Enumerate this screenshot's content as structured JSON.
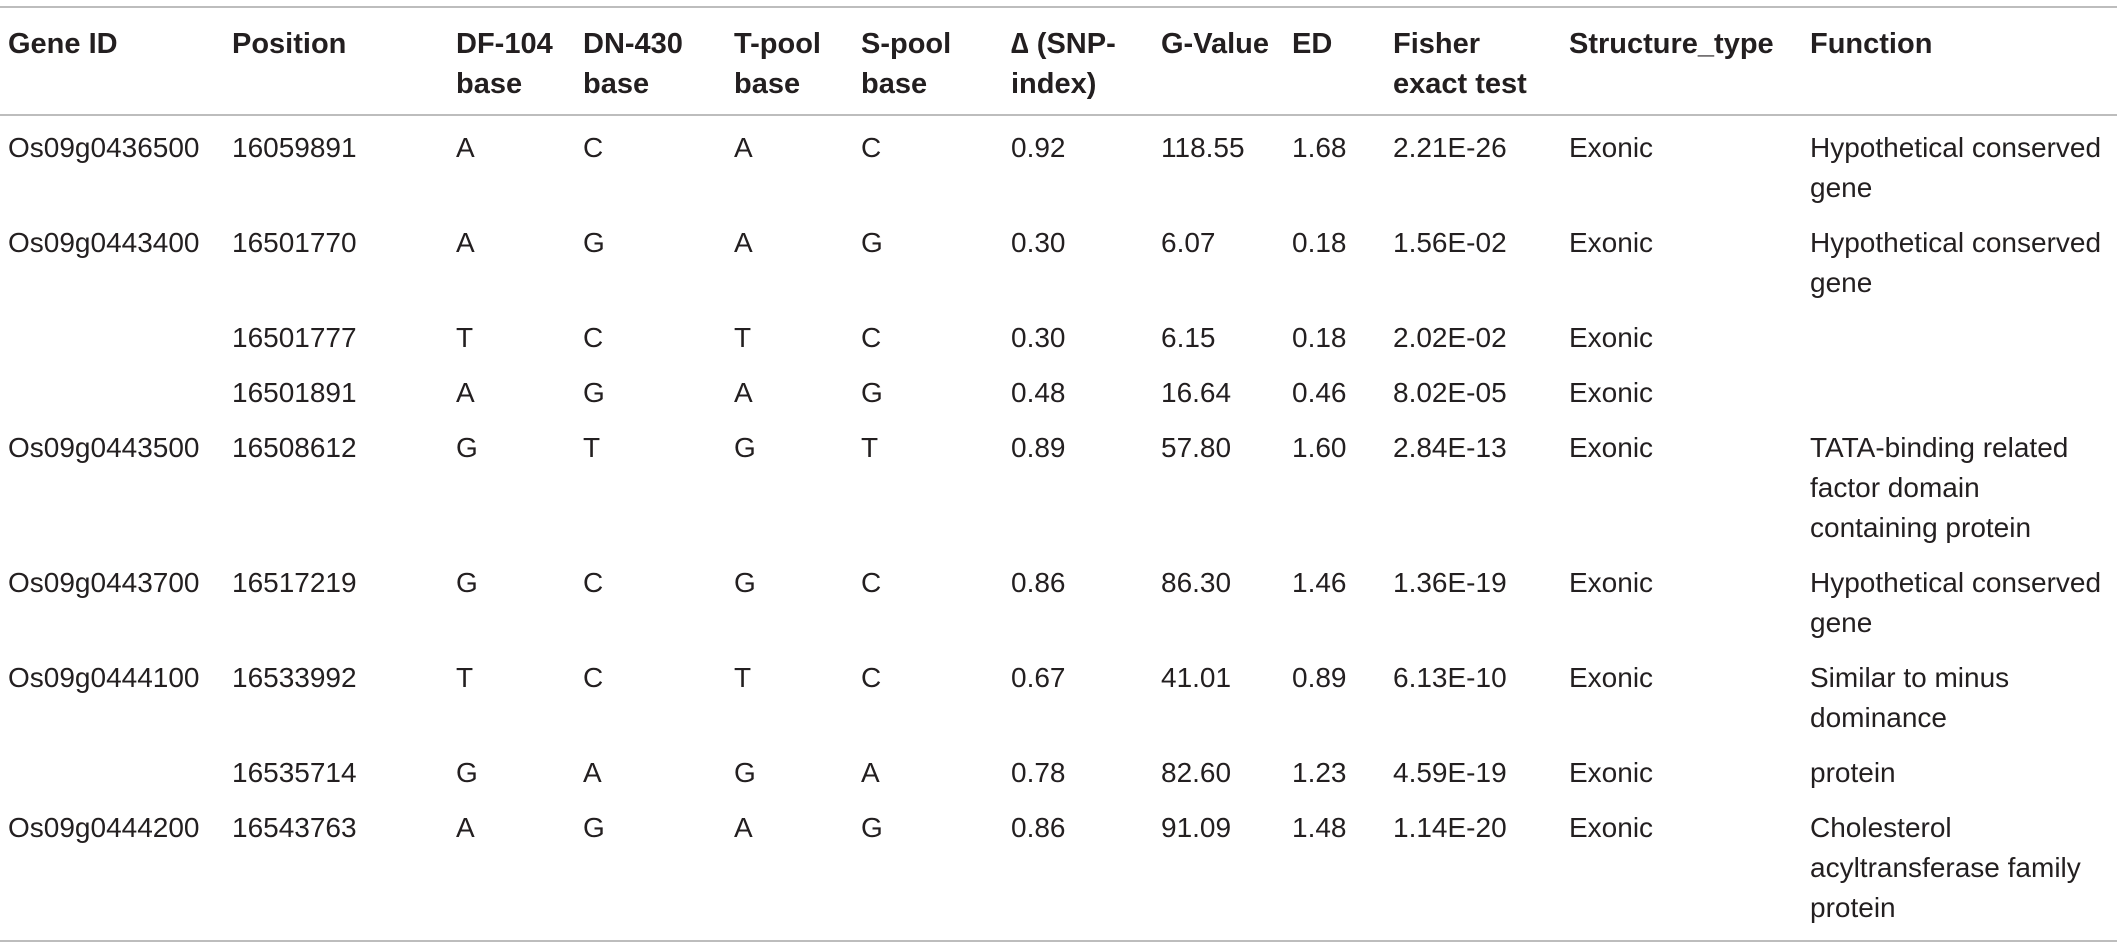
{
  "table": {
    "headers": {
      "gene_id": "Gene ID",
      "position": "Position",
      "df104": "DF-104\nbase",
      "dn430": "DN-430\nbase",
      "tpool": "T-pool\nbase",
      "spool": "S-pool\nbase",
      "delta": "∆ (SNP-\nindex)",
      "gvalue": "G-Value",
      "ed": "ED",
      "fisher": "Fisher\nexact test",
      "structure": "Structure_type",
      "function": "Function"
    },
    "rows": [
      {
        "gene_id": "Os09g0436500",
        "position": "16059891",
        "df104": "A",
        "dn430": "C",
        "tpool": "A",
        "spool": "C",
        "delta": "0.92",
        "gvalue": "118.55",
        "ed": "1.68",
        "fisher": "2.21E-26",
        "structure": "Exonic",
        "function": "Hypothetical conserved\ngene"
      },
      {
        "gene_id": "Os09g0443400",
        "position": "16501770",
        "df104": "A",
        "dn430": "G",
        "tpool": "A",
        "spool": "G",
        "delta": "0.30",
        "gvalue": "6.07",
        "ed": "0.18",
        "fisher": "1.56E-02",
        "structure": "Exonic",
        "function": "Hypothetical conserved\ngene"
      },
      {
        "gene_id": "",
        "position": "16501777",
        "df104": "T",
        "dn430": "C",
        "tpool": "T",
        "spool": "C",
        "delta": "0.30",
        "gvalue": "6.15",
        "ed": "0.18",
        "fisher": "2.02E-02",
        "structure": "Exonic",
        "function": ""
      },
      {
        "gene_id": "",
        "position": "16501891",
        "df104": "A",
        "dn430": "G",
        "tpool": "A",
        "spool": "G",
        "delta": "0.48",
        "gvalue": "16.64",
        "ed": "0.46",
        "fisher": "8.02E-05",
        "structure": "Exonic",
        "function": ""
      },
      {
        "gene_id": "Os09g0443500",
        "position": "16508612",
        "df104": "G",
        "dn430": "T",
        "tpool": "G",
        "spool": "T",
        "delta": "0.89",
        "gvalue": "57.80",
        "ed": "1.60",
        "fisher": "2.84E-13",
        "structure": "Exonic",
        "function": "TATA-binding related\nfactor domain\ncontaining protein"
      },
      {
        "gene_id": "Os09g0443700",
        "position": "16517219",
        "df104": "G",
        "dn430": "C",
        "tpool": "G",
        "spool": "C",
        "delta": "0.86",
        "gvalue": "86.30",
        "ed": "1.46",
        "fisher": "1.36E-19",
        "structure": "Exonic",
        "function": "Hypothetical conserved\ngene"
      },
      {
        "gene_id": "Os09g0444100",
        "position": "16533992",
        "df104": "T",
        "dn430": "C",
        "tpool": "T",
        "spool": "C",
        "delta": "0.67",
        "gvalue": "41.01",
        "ed": "0.89",
        "fisher": "6.13E-10",
        "structure": "Exonic",
        "function": "Similar to minus\ndominance"
      },
      {
        "gene_id": "",
        "position": "16535714",
        "df104": "G",
        "dn430": "A",
        "tpool": "G",
        "spool": "A",
        "delta": "0.78",
        "gvalue": "82.60",
        "ed": "1.23",
        "fisher": "4.59E-19",
        "structure": "Exonic",
        "function": "protein"
      },
      {
        "gene_id": "Os09g0444200",
        "position": "16543763",
        "df104": "A",
        "dn430": "G",
        "tpool": "A",
        "spool": "G",
        "delta": "0.86",
        "gvalue": "91.09",
        "ed": "1.48",
        "fisher": "1.14E-20",
        "structure": "Exonic",
        "function": "Cholesterol\nacyltransferase family\nprotein"
      }
    ]
  },
  "colors": {
    "text": "#231f20",
    "rule": "#bdbdbd",
    "background": "#ffffff"
  }
}
